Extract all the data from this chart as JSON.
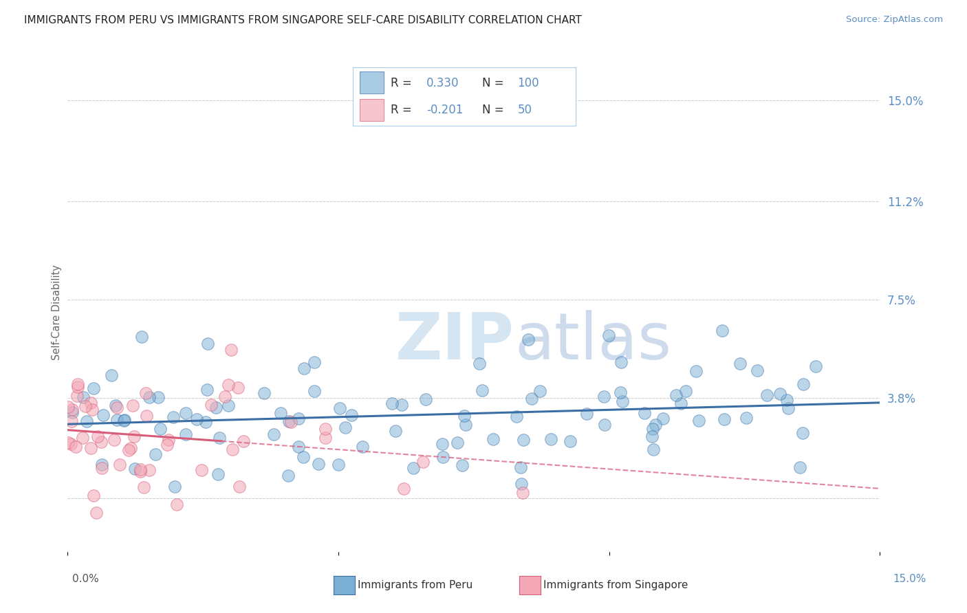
{
  "title": "IMMIGRANTS FROM PERU VS IMMIGRANTS FROM SINGAPORE SELF-CARE DISABILITY CORRELATION CHART",
  "source": "Source: ZipAtlas.com",
  "ylabel": "Self-Care Disability",
  "xlim": [
    0.0,
    0.15
  ],
  "ylim": [
    -0.02,
    0.16
  ],
  "yticks": [
    0.0,
    0.038,
    0.075,
    0.112,
    0.15
  ],
  "ytick_labels": [
    "",
    "3.8%",
    "7.5%",
    "11.2%",
    "15.0%"
  ],
  "legend_r_peru": "0.330",
  "legend_n_peru": "100",
  "legend_r_singapore": "-0.201",
  "legend_n_singapore": "50",
  "color_peru": "#7BAFD4",
  "color_singapore": "#F4A7B5",
  "color_peru_line": "#3A6EA5",
  "color_singapore_line": "#D95B7A",
  "watermark_color": "#D5E5F2",
  "background_color": "#FFFFFF",
  "grid_color": "#CCCCCC",
  "title_color": "#222222",
  "axis_label_color": "#5B8EC4",
  "text_dark": "#333333",
  "n_peru": 100,
  "n_singapore": 50,
  "seed_peru": 42,
  "seed_singapore": 99
}
